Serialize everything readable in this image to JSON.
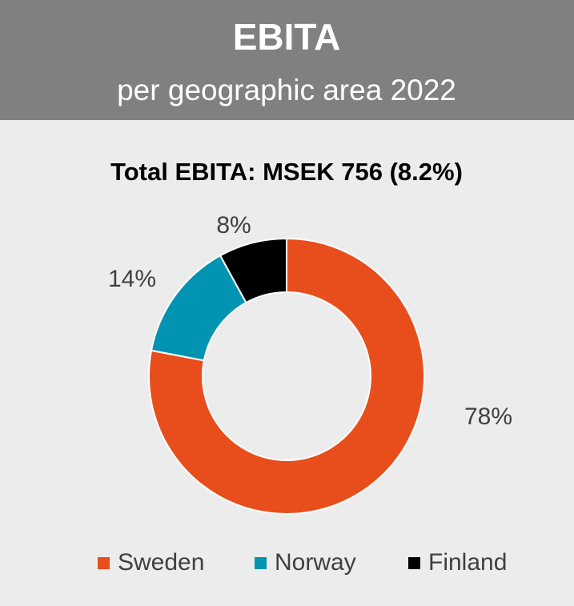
{
  "chart_data": {
    "type": "pie",
    "title": "EBITA",
    "subtitle": "per geographic area 2022",
    "chart_title": "Total EBITA: MSEK 756 (8.2%)",
    "categories": [
      "Sweden",
      "Norway",
      "Finland"
    ],
    "values": [
      78,
      14,
      8
    ],
    "value_labels": [
      "78%",
      "14%",
      "8%"
    ],
    "colors": [
      "#e84e1b",
      "#0093b2",
      "#000000"
    ],
    "donut": true,
    "legend": "bottom"
  }
}
